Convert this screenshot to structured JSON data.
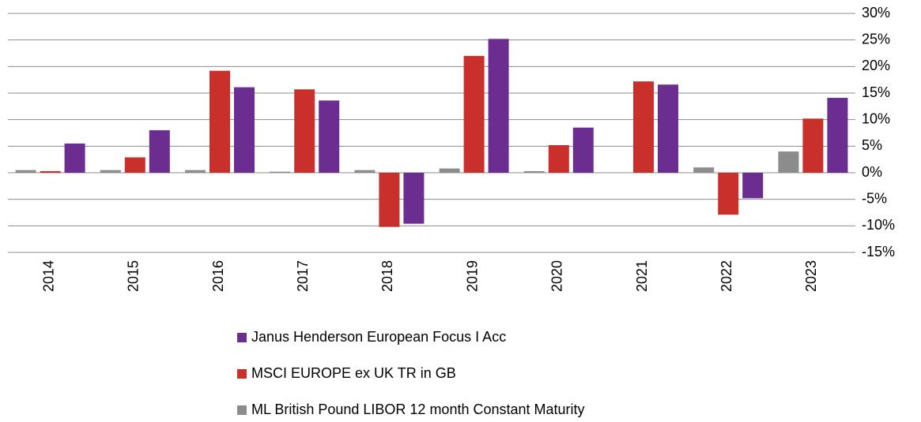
{
  "chart_data": {
    "type": "bar",
    "categories": [
      "2014",
      "2015",
      "2016",
      "2017",
      "2018",
      "2019",
      "2020",
      "2021",
      "2022",
      "2023"
    ],
    "series": [
      {
        "name": "Janus Henderson European Focus I Acc",
        "color": "#6b2d90",
        "values": [
          5.5,
          8.0,
          16.1,
          13.6,
          -9.6,
          25.2,
          8.5,
          16.6,
          -4.8,
          14.1
        ]
      },
      {
        "name": "MSCI EUROPE ex UK TR in GB",
        "color": "#c9302c",
        "values": [
          0.3,
          2.9,
          19.2,
          15.7,
          -10.2,
          22.0,
          5.2,
          17.2,
          -7.9,
          10.2
        ]
      },
      {
        "name": "ML British Pound LIBOR 12 month Constant Maturity",
        "color": "#8c8c8c",
        "values": [
          0.5,
          0.5,
          0.5,
          0.2,
          0.5,
          0.8,
          0.3,
          0.0,
          1.0,
          4.0
        ]
      }
    ],
    "ylim": [
      -15,
      30
    ],
    "yticks": [
      {
        "value": -15,
        "label": "-15%"
      },
      {
        "value": -10,
        "label": "-10%"
      },
      {
        "value": -5,
        "label": "-5%"
      },
      {
        "value": 0,
        "label": "0%"
      },
      {
        "value": 5,
        "label": "5%"
      },
      {
        "value": 10,
        "label": "10%"
      },
      {
        "value": 15,
        "label": "15%"
      },
      {
        "value": 20,
        "label": "20%"
      },
      {
        "value": 25,
        "label": "25%"
      },
      {
        "value": 30,
        "label": "30%"
      }
    ],
    "grid": true
  }
}
